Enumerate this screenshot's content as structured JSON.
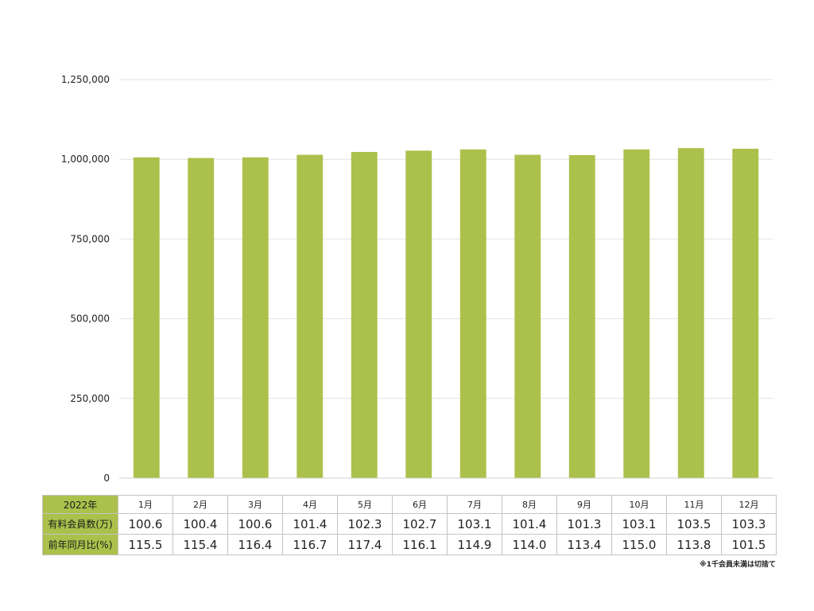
{
  "chart_data": {
    "type": "bar",
    "categories": [
      "1月",
      "2月",
      "3月",
      "4月",
      "5月",
      "6月",
      "7月",
      "8月",
      "9月",
      "10月",
      "11月",
      "12月"
    ],
    "values": [
      1006000,
      1004000,
      1006000,
      1014000,
      1023000,
      1027000,
      1031000,
      1014000,
      1013000,
      1031000,
      1035000,
      1033000
    ],
    "ylim": [
      0,
      1250000
    ],
    "yticks": [
      0,
      250000,
      500000,
      750000,
      1000000,
      1250000
    ],
    "ytick_labels": [
      "0",
      "250,000",
      "500,000",
      "750,000",
      "1,000,000",
      "1,250,000"
    ],
    "grid": true,
    "bar_color": "#abc14b",
    "grid_color": "#e2e2e2",
    "title": "",
    "xlabel": "",
    "ylabel": ""
  },
  "table": {
    "year_label": "2022年",
    "months": [
      "1月",
      "2月",
      "3月",
      "4月",
      "5月",
      "6月",
      "7月",
      "8月",
      "9月",
      "10月",
      "11月",
      "12月"
    ],
    "members_label": "有料会員数(万)",
    "members": [
      "100.6",
      "100.4",
      "100.6",
      "101.4",
      "102.3",
      "102.7",
      "103.1",
      "101.4",
      "101.3",
      "103.1",
      "103.5",
      "103.3"
    ],
    "yoy_label": "前年同月比(%)",
    "yoy": [
      "115.5",
      "115.4",
      "116.4",
      "116.7",
      "117.4",
      "116.1",
      "114.9",
      "114.0",
      "113.4",
      "115.0",
      "113.8",
      "101.5"
    ],
    "header_color": "#abc14b"
  },
  "footnote": "※1千会員未満は切捨て"
}
